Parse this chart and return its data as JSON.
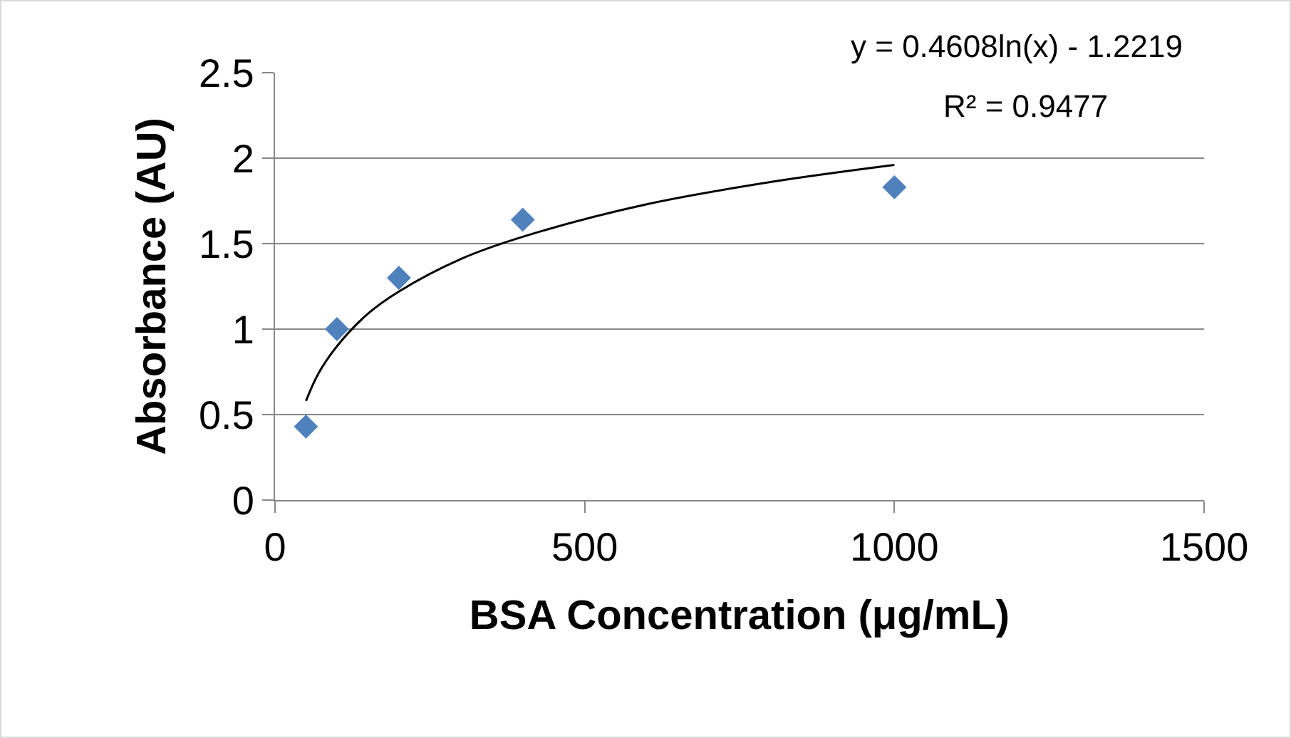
{
  "chart_data": {
    "type": "scatter",
    "xlabel": "BSA Concentration (μg/mL)",
    "ylabel": "Absorbance (AU)",
    "xlim": [
      0,
      1500
    ],
    "xticks": [
      0,
      500,
      1000,
      1500
    ],
    "ylim": [
      0,
      2.5
    ],
    "yticks": [
      0,
      0.5,
      1,
      1.5,
      2,
      2.5
    ],
    "grid": "y",
    "series": [
      {
        "marker": "diamond",
        "color": "#4f81bd",
        "x": [
          50,
          100,
          200,
          400,
          1000
        ],
        "values": [
          0.43,
          1.0,
          1.3,
          1.64,
          1.83
        ]
      },
      {
        "type": "line",
        "color": "#000000",
        "line_style": "solid",
        "x": [
          50,
          70,
          100,
          150,
          200,
          300,
          400,
          600,
          800,
          1000
        ],
        "values": [
          0.58,
          0.74,
          0.9,
          1.09,
          1.22,
          1.41,
          1.54,
          1.73,
          1.86,
          1.96
        ]
      }
    ],
    "annotations": [
      "y = 0.4608ln(x) - 1.2219",
      "R² = 0.9477"
    ]
  }
}
